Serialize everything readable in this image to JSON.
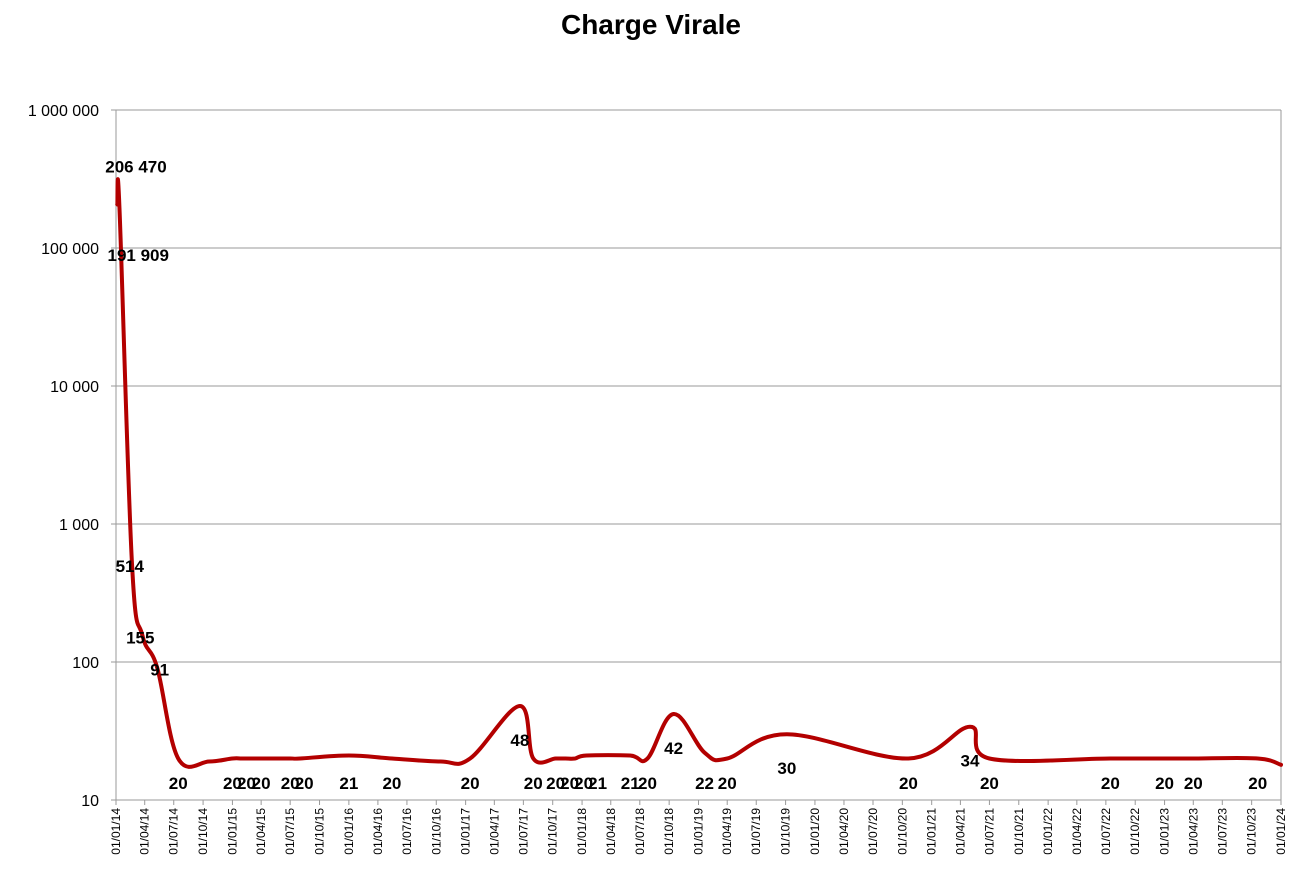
{
  "chart_data": {
    "type": "line",
    "title": "Charge Virale",
    "xlabel": "",
    "ylabel": "",
    "scale": "log",
    "ylim": [
      10,
      1000000
    ],
    "xlim": [
      "2014-01-01",
      "2024-01-01"
    ],
    "y_ticks": [
      {
        "value": 10,
        "label": "10"
      },
      {
        "value": 100,
        "label": "100"
      },
      {
        "value": 1000,
        "label": "1 000"
      },
      {
        "value": 10000,
        "label": "10 000"
      },
      {
        "value": 100000,
        "label": "100 000"
      },
      {
        "value": 1000000,
        "label": "1 000 000"
      }
    ],
    "x_ticks": [
      {
        "date": "2014-01-01",
        "label": "01/01/14"
      },
      {
        "date": "2014-04-01",
        "label": "01/04/14"
      },
      {
        "date": "2014-07-01",
        "label": "01/07/14"
      },
      {
        "date": "2014-10-01",
        "label": "01/10/14"
      },
      {
        "date": "2015-01-01",
        "label": "01/01/15"
      },
      {
        "date": "2015-04-01",
        "label": "01/04/15"
      },
      {
        "date": "2015-07-01",
        "label": "01/07/15"
      },
      {
        "date": "2015-10-01",
        "label": "01/10/15"
      },
      {
        "date": "2016-01-01",
        "label": "01/01/16"
      },
      {
        "date": "2016-04-01",
        "label": "01/04/16"
      },
      {
        "date": "2016-07-01",
        "label": "01/07/16"
      },
      {
        "date": "2016-10-01",
        "label": "01/10/16"
      },
      {
        "date": "2017-01-01",
        "label": "01/01/17"
      },
      {
        "date": "2017-04-01",
        "label": "01/04/17"
      },
      {
        "date": "2017-07-01",
        "label": "01/07/17"
      },
      {
        "date": "2017-10-01",
        "label": "01/10/17"
      },
      {
        "date": "2018-01-01",
        "label": "01/01/18"
      },
      {
        "date": "2018-04-01",
        "label": "01/04/18"
      },
      {
        "date": "2018-07-01",
        "label": "01/07/18"
      },
      {
        "date": "2018-10-01",
        "label": "01/10/18"
      },
      {
        "date": "2019-01-01",
        "label": "01/01/19"
      },
      {
        "date": "2019-04-01",
        "label": "01/04/19"
      },
      {
        "date": "2019-07-01",
        "label": "01/07/19"
      },
      {
        "date": "2019-10-01",
        "label": "01/10/19"
      },
      {
        "date": "2020-01-01",
        "label": "01/01/20"
      },
      {
        "date": "2020-04-01",
        "label": "01/04/20"
      },
      {
        "date": "2020-07-01",
        "label": "01/07/20"
      },
      {
        "date": "2020-10-01",
        "label": "01/10/20"
      },
      {
        "date": "2021-01-01",
        "label": "01/01/21"
      },
      {
        "date": "2021-04-01",
        "label": "01/04/21"
      },
      {
        "date": "2021-07-01",
        "label": "01/07/21"
      },
      {
        "date": "2021-10-01",
        "label": "01/10/21"
      },
      {
        "date": "2022-01-01",
        "label": "01/01/22"
      },
      {
        "date": "2022-04-01",
        "label": "01/04/22"
      },
      {
        "date": "2022-07-01",
        "label": "01/07/22"
      },
      {
        "date": "2022-10-01",
        "label": "01/10/22"
      },
      {
        "date": "2023-01-01",
        "label": "01/01/23"
      },
      {
        "date": "2023-04-01",
        "label": "01/04/23"
      },
      {
        "date": "2023-07-01",
        "label": "01/07/23"
      },
      {
        "date": "2023-10-01",
        "label": "01/10/23"
      },
      {
        "date": "2024-01-01",
        "label": "01/01/24"
      }
    ],
    "grid": true,
    "series": [
      {
        "color": "#b30000",
        "points": [
          {
            "date": "2014-01-05",
            "y": 206470,
            "label": "206 470"
          },
          {
            "date": "2014-01-12",
            "y": 191909,
            "label": "191 909"
          },
          {
            "date": "2014-02-20",
            "y": 514,
            "label": "514"
          },
          {
            "date": "2014-03-25",
            "y": 155,
            "label": "155"
          },
          {
            "date": "2014-05-10",
            "y": 91,
            "label": "91"
          },
          {
            "date": "2014-07-15",
            "y": 20,
            "label": "20"
          },
          {
            "date": "2014-10-20",
            "y": 19
          },
          {
            "date": "2015-01-01",
            "y": 20,
            "label": "20"
          },
          {
            "date": "2015-02-01",
            "y": 20,
            "label": "20"
          },
          {
            "date": "2015-04-01",
            "y": 20,
            "label": "20"
          },
          {
            "date": "2015-07-01",
            "y": 20,
            "label": "20"
          },
          {
            "date": "2015-08-01",
            "y": 20,
            "label": "20"
          },
          {
            "date": "2016-01-01",
            "y": 21,
            "label": "21"
          },
          {
            "date": "2016-05-15",
            "y": 20,
            "label": "20"
          },
          {
            "date": "2016-10-15",
            "y": 19
          },
          {
            "date": "2017-01-15",
            "y": 20,
            "label": "20"
          },
          {
            "date": "2017-06-20",
            "y": 48,
            "label": "48"
          },
          {
            "date": "2017-08-01",
            "y": 20,
            "label": "20"
          },
          {
            "date": "2017-10-10",
            "y": 20,
            "label": "20"
          },
          {
            "date": "2017-11-10",
            "y": 20,
            "label": "20"
          },
          {
            "date": "2017-12-10",
            "y": 20,
            "label": "20"
          },
          {
            "date": "2018-01-15",
            "y": 21,
            "label": "21"
          },
          {
            "date": "2018-06-01",
            "y": 21,
            "label": "21"
          },
          {
            "date": "2018-07-25",
            "y": 20,
            "label": "20"
          },
          {
            "date": "2018-10-15",
            "y": 42,
            "label": "42"
          },
          {
            "date": "2019-01-20",
            "y": 22,
            "label": "22"
          },
          {
            "date": "2019-04-01",
            "y": 20,
            "label": "20"
          },
          {
            "date": "2019-10-05",
            "y": 30,
            "label": "30"
          },
          {
            "date": "2020-10-20",
            "y": 20,
            "label": "20"
          },
          {
            "date": "2021-05-01",
            "y": 34,
            "label": "34"
          },
          {
            "date": "2021-07-01",
            "y": 20,
            "label": "20"
          },
          {
            "date": "2022-07-15",
            "y": 20,
            "label": "20"
          },
          {
            "date": "2023-01-01",
            "y": 20,
            "label": "20"
          },
          {
            "date": "2023-04-01",
            "y": 20,
            "label": "20"
          },
          {
            "date": "2023-10-20",
            "y": 20,
            "label": "20"
          },
          {
            "date": "2024-01-01",
            "y": 18
          }
        ]
      }
    ]
  }
}
